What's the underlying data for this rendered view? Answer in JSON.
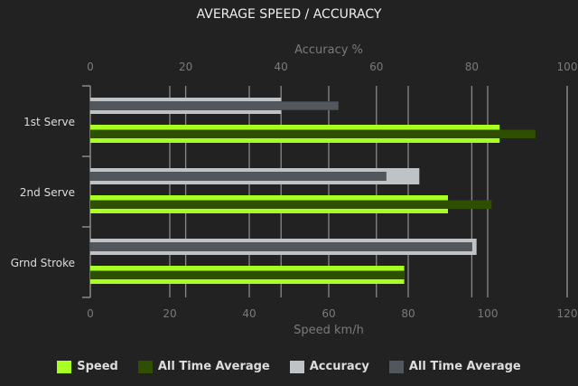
{
  "chart_data": {
    "type": "bar",
    "orientation": "horizontal",
    "title": "AVERAGE SPEED / ACCURACY",
    "categories": [
      "1st Serve",
      "2nd Serve",
      "Grnd Stroke"
    ],
    "top_axis": {
      "label": "Accuracy %",
      "range": [
        0,
        100
      ],
      "ticks": [
        0,
        20,
        40,
        60,
        80,
        100
      ]
    },
    "bottom_axis": {
      "label": "Speed km/h",
      "range": [
        0,
        120
      ],
      "ticks": [
        0,
        20,
        40,
        60,
        80,
        100,
        120
      ]
    },
    "series": [
      {
        "name": "Speed",
        "axis": "bottom",
        "color": "#aaff22",
        "values": [
          103,
          90,
          79
        ]
      },
      {
        "name": "All Time Average",
        "axis": "bottom",
        "color": "#2f4f00",
        "values": [
          112,
          101,
          79
        ]
      },
      {
        "name": "Accuracy",
        "axis": "top",
        "color": "#bfc3c6",
        "values": [
          40,
          69,
          81
        ]
      },
      {
        "name": "All Time Average",
        "axis": "top",
        "color": "#52575e",
        "values": [
          52,
          62,
          80
        ]
      }
    ],
    "grid": true,
    "legend": "bottom"
  }
}
